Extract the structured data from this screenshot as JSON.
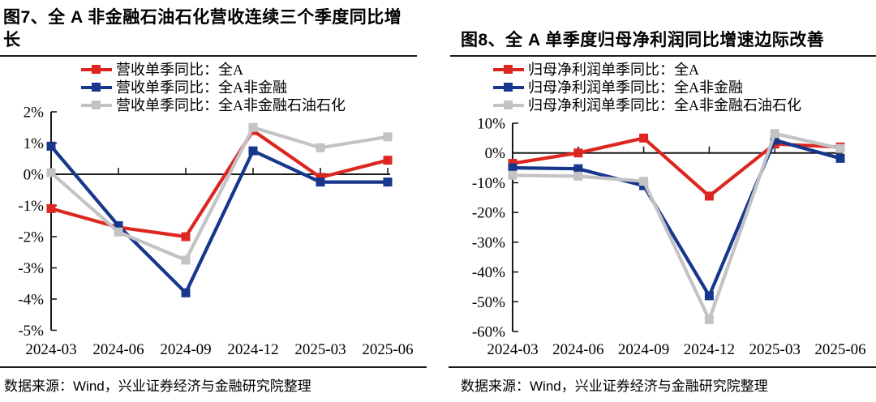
{
  "colors": {
    "red": "#DC2720",
    "blue": "#17378C",
    "gray": "#C3C3C6",
    "axis": "#1A1A1A"
  },
  "panels": [
    {
      "figure_id": "图7",
      "title": "图7、全 A 非金融石油石化营收连续三个季度同比增长",
      "source": "数据来源：Wind，兴业证券经济与金融研究院整理"
    },
    {
      "figure_id": "图8",
      "title": "图8、全 A 单季度归母净利润同比增速边际改善",
      "source": "数据来源：Wind，兴业证券经济与金融研究院整理"
    }
  ],
  "chart_data": [
    {
      "type": "line",
      "title": "图7、全 A 非金融石油石化营收连续三个季度同比增长",
      "categories": [
        "2024-03",
        "2024-06",
        "2024-09",
        "2024-12",
        "2025-03",
        "2025-06"
      ],
      "series": [
        {
          "name": "营收单季同比：全A",
          "color_key": "red",
          "values": [
            -1.1,
            -1.7,
            -2.0,
            1.4,
            -0.1,
            0.45
          ]
        },
        {
          "name": "营收单季同比：全A非金融",
          "color_key": "blue",
          "values": [
            0.9,
            -1.65,
            -3.8,
            0.75,
            -0.25,
            -0.25
          ]
        },
        {
          "name": "营收单季同比：全A非金融石油石化",
          "color_key": "gray",
          "values": [
            0.05,
            -1.85,
            -2.75,
            1.5,
            0.85,
            1.2
          ]
        }
      ],
      "unit": "%",
      "ylim": [
        -5,
        2
      ],
      "ytick_step": 1,
      "ytick_labels": [
        "2%",
        "1%",
        "0%",
        "-1%",
        "-2%",
        "-3%",
        "-4%",
        "-5%"
      ],
      "grid": false,
      "legend_position": "top-left-inside",
      "x_axis_at_value": 0
    },
    {
      "type": "line",
      "title": "图8、全 A 单季度归母净利润同比增速边际改善",
      "categories": [
        "2024-03",
        "2024-06",
        "2024-09",
        "2024-12",
        "2025-03",
        "2025-06"
      ],
      "series": [
        {
          "name": "归母净利润单季同比：全A",
          "color_key": "red",
          "values": [
            -3.5,
            0,
            5,
            -14.5,
            3,
            2
          ]
        },
        {
          "name": "归母净利润单季同比：全A非金融",
          "color_key": "blue",
          "values": [
            -5,
            -5.3,
            -11,
            -48,
            4.3,
            -1.8
          ]
        },
        {
          "name": "归母净利润单季同比：全A非金融石油石化",
          "color_key": "gray",
          "values": [
            -7.5,
            -7.8,
            -9.5,
            -56,
            6.5,
            1.5
          ]
        }
      ],
      "unit": "%",
      "ylim": [
        -60,
        10
      ],
      "ytick_step": 10,
      "ytick_labels": [
        "10%",
        "0%",
        "-10%",
        "-20%",
        "-30%",
        "-40%",
        "-50%",
        "-60%"
      ],
      "grid": false,
      "legend_position": "top-left-inside",
      "x_axis_at_value": 0
    }
  ]
}
